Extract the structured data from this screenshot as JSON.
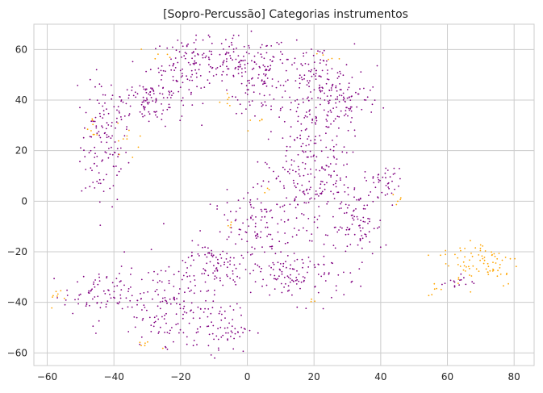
{
  "chart_data": {
    "type": "scatter",
    "title": "[Sopro-Percussão] Categorias instrumentos",
    "xlabel": "",
    "ylabel": "",
    "xlim": [
      -64,
      86
    ],
    "ylim": [
      -65,
      70
    ],
    "xticks": [
      -60,
      -40,
      -20,
      0,
      20,
      40,
      60,
      80
    ],
    "yticks": [
      -60,
      -40,
      -20,
      0,
      20,
      40,
      60
    ],
    "xtick_labels": [
      "−60",
      "−40",
      "−20",
      "0",
      "20",
      "40",
      "60",
      "80"
    ],
    "ytick_labels": [
      "−60",
      "−40",
      "−20",
      "0",
      "20",
      "40",
      "60"
    ],
    "grid": true,
    "background": "#ffffff",
    "grid_color": "#cccccc",
    "series": [
      {
        "color": "#800080",
        "clusters": [
          {
            "cx": -43,
            "cy": 22,
            "sx": 3.5,
            "sy": 12,
            "n": 120
          },
          {
            "cx": -30,
            "cy": 40,
            "sx": 6,
            "sy": 5,
            "n": 110
          },
          {
            "cx": -17,
            "cy": 54,
            "sx": 6,
            "sy": 5,
            "n": 110
          },
          {
            "cx": -1,
            "cy": 55,
            "sx": 7,
            "sy": 5,
            "n": 110
          },
          {
            "cx": 5,
            "cy": 45,
            "sx": 5,
            "sy": 5,
            "n": 60
          },
          {
            "cx": 20,
            "cy": 48,
            "sx": 6,
            "sy": 7,
            "n": 110
          },
          {
            "cx": 28,
            "cy": 40,
            "sx": 6,
            "sy": 5,
            "n": 80
          },
          {
            "cx": 18,
            "cy": 25,
            "sx": 6,
            "sy": 8,
            "n": 110
          },
          {
            "cx": 20,
            "cy": 5,
            "sx": 7,
            "sy": 7,
            "n": 120
          },
          {
            "cx": 41,
            "cy": 8,
            "sx": 3,
            "sy": 3,
            "n": 40
          },
          {
            "cx": 33,
            "cy": -10,
            "sx": 4,
            "sy": 7,
            "n": 80
          },
          {
            "cx": 5,
            "cy": -10,
            "sx": 8,
            "sy": 7,
            "n": 130
          },
          {
            "cx": 15,
            "cy": -30,
            "sx": 7,
            "sy": 5,
            "n": 110
          },
          {
            "cx": -10,
            "cy": -25,
            "sx": 6,
            "sy": 5,
            "n": 80
          },
          {
            "cx": -25,
            "cy": -40,
            "sx": 8,
            "sy": 8,
            "n": 150
          },
          {
            "cx": -45,
            "cy": -37,
            "sx": 5,
            "sy": 4,
            "n": 70
          },
          {
            "cx": -8,
            "cy": -50,
            "sx": 5,
            "sy": 5,
            "n": 70
          },
          {
            "cx": 63,
            "cy": -32,
            "sx": 2.5,
            "sy": 1.5,
            "n": 15
          }
        ]
      },
      {
        "color": "#ffa500",
        "clusters": [
          {
            "cx": 70,
            "cy": -24,
            "sx": 6,
            "sy": 5,
            "n": 80
          },
          {
            "cx": -35,
            "cy": 25,
            "sx": 2,
            "sy": 3,
            "n": 10
          },
          {
            "cx": -46,
            "cy": 28,
            "sx": 1.5,
            "sy": 3,
            "n": 8
          },
          {
            "cx": -57,
            "cy": -38,
            "sx": 1,
            "sy": 2,
            "n": 8
          },
          {
            "cx": -31,
            "cy": -56,
            "sx": 2,
            "sy": 1,
            "n": 6
          },
          {
            "cx": -5,
            "cy": 39,
            "sx": 2,
            "sy": 2,
            "n": 6
          },
          {
            "cx": 3,
            "cy": 31,
            "sx": 1.5,
            "sy": 2,
            "n": 5
          },
          {
            "cx": 24,
            "cy": 57,
            "sx": 2,
            "sy": 1,
            "n": 5
          },
          {
            "cx": -25,
            "cy": 58,
            "sx": 2,
            "sy": 1,
            "n": 5
          },
          {
            "cx": 45,
            "cy": 1,
            "sx": 1.5,
            "sy": 1.5,
            "n": 5
          },
          {
            "cx": 5,
            "cy": 5,
            "sx": 1,
            "sy": 1,
            "n": 3
          },
          {
            "cx": -5,
            "cy": -10,
            "sx": 1.5,
            "sy": 1,
            "n": 4
          },
          {
            "cx": 57,
            "cy": -35,
            "sx": 1.5,
            "sy": 1.5,
            "n": 6
          },
          {
            "cx": 20,
            "cy": -40,
            "sx": 1.5,
            "sy": 1,
            "n": 3
          }
        ]
      }
    ]
  }
}
